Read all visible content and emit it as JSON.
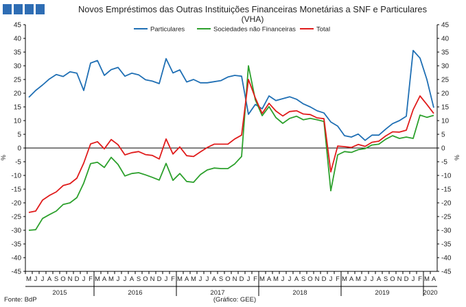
{
  "chart_data": {
    "type": "line",
    "title": "Novos Empréstimos das Outras Instituições Financeiras Monetárias a SNF e Particulares",
    "subtitle": "(VHA)",
    "ylabel_left": "%",
    "ylabel_right": "%",
    "ylim": [
      -45,
      45
    ],
    "ytick_step": 5,
    "grid": false,
    "legend_position": "top-center",
    "x_month_labels": [
      "M",
      "J",
      "J",
      "A",
      "S",
      "O",
      "N",
      "D",
      "J",
      "F",
      "M",
      "A",
      "M",
      "J",
      "J",
      "A",
      "S",
      "O",
      "N",
      "D",
      "J",
      "F",
      "M",
      "A",
      "M",
      "J",
      "J",
      "A",
      "S",
      "O",
      "N",
      "D",
      "J",
      "F",
      "M",
      "A",
      "M",
      "J",
      "J",
      "A",
      "S",
      "O",
      "N",
      "D",
      "J",
      "F",
      "M",
      "A",
      "M",
      "J",
      "J",
      "A",
      "S",
      "O",
      "N",
      "D",
      "J",
      "F",
      "M",
      "A"
    ],
    "x_year_labels": [
      "2015",
      "2016",
      "2017",
      "2018",
      "2019",
      "2020"
    ],
    "series": [
      {
        "name": "Particulares",
        "color": "#1f6fb4",
        "values": [
          18.5,
          21,
          23,
          25.2,
          26.8,
          26.1,
          27.8,
          27.3,
          21,
          31,
          31.9,
          26.5,
          28.6,
          29.4,
          26.2,
          27.3,
          26.7,
          24.9,
          24.4,
          23.5,
          32.6,
          27.4,
          28.5,
          24.1,
          25,
          23.8,
          23.8,
          24.2,
          24.6,
          25.9,
          26.5,
          26.2,
          12.3,
          15.9,
          14.3,
          19,
          17.3,
          18,
          18.7,
          17.8,
          16.1,
          15,
          13.6,
          12.8,
          9.5,
          8,
          4.5,
          4,
          5.1,
          2.8,
          4.7,
          4.7,
          6.9,
          8.9,
          10,
          11.6,
          35.6,
          32.8,
          25,
          14.7
        ]
      },
      {
        "name": "Sociedades não Financeiras",
        "color": "#2ca02c",
        "values": [
          -30,
          -29.8,
          -25.7,
          -24.3,
          -23,
          -20.6,
          -20,
          -18.1,
          -12.8,
          -5.7,
          -5.2,
          -7.1,
          -3.4,
          -6,
          -10.2,
          -9.3,
          -9,
          -9.8,
          -10.7,
          -11.7,
          -5.6,
          -11.8,
          -9.3,
          -12.2,
          -12.5,
          -9.7,
          -8,
          -7.3,
          -7.5,
          -7.5,
          -5.8,
          -3.1,
          30,
          17.6,
          11.8,
          15.1,
          11.1,
          9,
          10.8,
          11.6,
          10.3,
          10.8,
          10.3,
          9.7,
          -15.6,
          -2.5,
          -1.3,
          -1.6,
          -0.6,
          -0.2,
          1.1,
          1.4,
          3.2,
          4.5,
          3.5,
          4,
          3.5,
          12,
          11.2,
          11.9
        ]
      },
      {
        "name": "Total",
        "color": "#e01b1b",
        "values": [
          -23.5,
          -23,
          -19,
          -17.3,
          -16,
          -13.7,
          -13,
          -11,
          -5.5,
          1.5,
          2.3,
          -0.3,
          3.1,
          1.2,
          -2.5,
          -1.7,
          -1.3,
          -2.4,
          -2.7,
          -4,
          3.3,
          -2.2,
          0.4,
          -2.8,
          -3.1,
          -1.4,
          0.2,
          1.4,
          1.4,
          1.4,
          3.3,
          4.7,
          25,
          18.3,
          12.6,
          16.3,
          13.5,
          11.7,
          13.3,
          13.6,
          12.4,
          12.2,
          11,
          10.7,
          -8.7,
          0.7,
          0.5,
          0.2,
          1.3,
          0.6,
          2.1,
          2.5,
          4.4,
          5.9,
          5.8,
          6.5,
          14,
          19,
          15.9,
          12.6
        ]
      }
    ],
    "footer_left": "Fonte: BdP",
    "footer_center": "(Gráfico: GEE)"
  }
}
